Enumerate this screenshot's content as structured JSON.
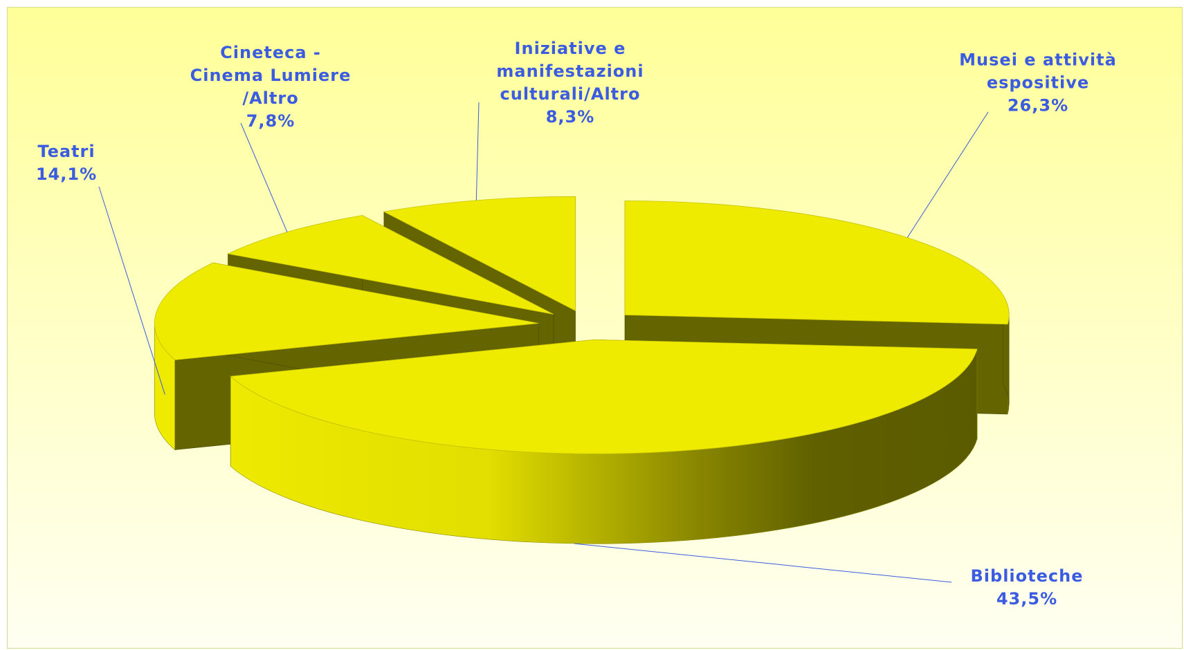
{
  "chart_data": {
    "type": "pie3d",
    "categories": [
      "Musei e attività espositive",
      "Biblioteche",
      "Teatri",
      "Cineteca - Cinema Lumiere /Altro",
      "Iniziative e manifestazioni culturali/Altro"
    ],
    "values": [
      26.3,
      43.5,
      14.1,
      7.8,
      8.3
    ],
    "value_labels": [
      "26,3%",
      "43,5%",
      "14,1%",
      "7,8%",
      "8,3%"
    ],
    "color": "#eeea00"
  }
}
